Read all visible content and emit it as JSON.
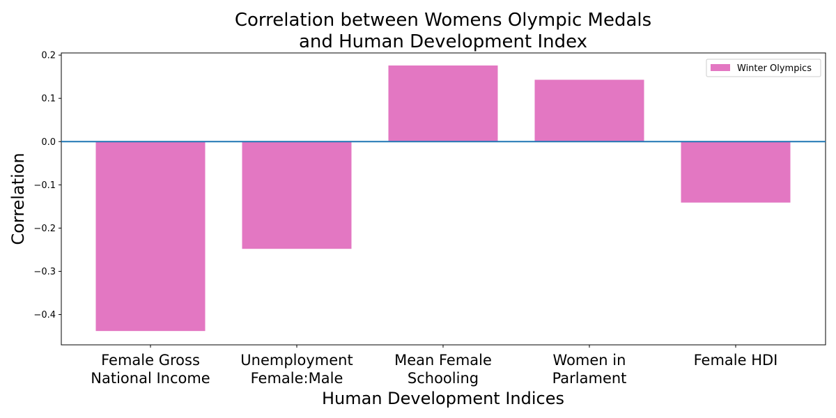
{
  "chart_data": {
    "type": "bar",
    "title": [
      "Correlation between Womens Olympic Medals",
      "and Human Development Index"
    ],
    "xlabel": "Human Development Indices",
    "ylabel": "Correlation",
    "categories": [
      [
        "Female Gross",
        "National Income"
      ],
      [
        "Unemployment",
        "Female:Male"
      ],
      [
        "Mean Female",
        "Schooling"
      ],
      [
        "Women in",
        "Parlament"
      ],
      [
        "Female HDI"
      ]
    ],
    "series": [
      {
        "name": "Winter Olympics",
        "color": "#e377c2",
        "values": [
          -0.438,
          -0.248,
          0.176,
          0.143,
          -0.141
        ]
      }
    ],
    "ylim": [
      -0.47,
      0.205
    ],
    "yticks": [
      -0.4,
      -0.3,
      -0.2,
      -0.1,
      0.0,
      0.1,
      0.2
    ],
    "ytick_labels": [
      "−0.4",
      "−0.3",
      "−0.2",
      "−0.1",
      "0.0",
      "0.1",
      "0.2"
    ],
    "zero_line_color": "#1f77b4",
    "legend_position": "upper right",
    "grid": false
  }
}
